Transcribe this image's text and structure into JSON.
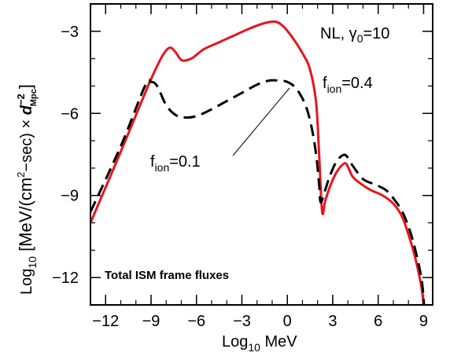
{
  "chart_data": {
    "type": "line",
    "xlabel": {
      "prefix": "Log",
      "sub": "10",
      "rest": " MeV"
    },
    "ylabel": {
      "p1": "Log",
      "p1sub": "10",
      "p2": " [MeV/(cm",
      "p2sup": "2",
      "p3": "−sec) × ",
      "p3var": "d",
      "p3sup": "−2",
      "p3sub": "Mpc",
      "p4": "]"
    },
    "xlim": [
      -13,
      9.6
    ],
    "ylim": [
      -13,
      -2
    ],
    "xticks_major": [
      -12,
      -9,
      -6,
      -3,
      0,
      3,
      6,
      9
    ],
    "yticks_major": [
      -3,
      -6,
      -9,
      -12
    ],
    "tick_labels_x": [
      "−12",
      "−9",
      "−6",
      "−3",
      "0",
      "3",
      "6",
      "9"
    ],
    "tick_labels_y": [
      "−3",
      "−6",
      "−9",
      "−12"
    ],
    "series": [
      {
        "name": "f_ion=0.4",
        "style": "solid",
        "color": "#e8141c",
        "x": [
          -13,
          -11,
          -9.2,
          -8.4,
          -8,
          -7.7,
          -7.4,
          -7,
          -6.6,
          -6.2,
          -5.5,
          -4.5,
          -3.5,
          -2.5,
          -1.5,
          -0.8,
          -0.3,
          0.3,
          1,
          1.5,
          1.9,
          2.1,
          2.3,
          2.5,
          2.8,
          3.2,
          3.6,
          3.9,
          4.3,
          4.8,
          5.5,
          6.3,
          7,
          7.6,
          8.1,
          8.5,
          8.9,
          9.1,
          9.3
        ],
        "y": [
          -10,
          -7.4,
          -5,
          -4.05,
          -3.7,
          -3.6,
          -3.75,
          -4.05,
          -4.05,
          -3.95,
          -3.65,
          -3.4,
          -3.15,
          -2.9,
          -2.7,
          -2.65,
          -2.8,
          -3.2,
          -3.8,
          -4.4,
          -5.6,
          -7.5,
          -9.6,
          -9.2,
          -8.7,
          -8.2,
          -7.9,
          -7.85,
          -8.3,
          -8.55,
          -8.8,
          -9,
          -9.3,
          -9.8,
          -10.6,
          -11.4,
          -12.5,
          -13.8,
          -15
        ]
      },
      {
        "name": "f_ion=0.1",
        "style": "dashed",
        "color": "#000000",
        "x": [
          -13,
          -11,
          -9.4,
          -9,
          -8.6,
          -8,
          -7.4,
          -6.8,
          -6,
          -5,
          -4,
          -3,
          -2,
          -1.2,
          -0.6,
          0,
          0.6,
          1.2,
          1.6,
          1.9,
          2.1,
          2.2,
          2.5,
          2.8,
          3.2,
          3.6,
          3.9,
          4.3,
          5,
          5.8,
          6.5,
          7,
          7.6,
          8.1,
          8.5,
          8.9,
          9.1,
          9.3
        ],
        "y": [
          -9.6,
          -7.2,
          -5,
          -4.85,
          -5,
          -5.7,
          -6.05,
          -6.15,
          -6.1,
          -5.85,
          -5.55,
          -5.25,
          -4.95,
          -4.8,
          -4.8,
          -4.85,
          -5.1,
          -5.7,
          -6.5,
          -7.5,
          -8.6,
          -9.25,
          -8.8,
          -8.3,
          -7.8,
          -7.55,
          -7.55,
          -7.9,
          -8.4,
          -8.6,
          -8.8,
          -9.1,
          -9.6,
          -10.3,
          -11.1,
          -12.2,
          -13.6,
          -15
        ]
      }
    ],
    "annotations": {
      "top_right": "NL, γ",
      "top_right_sub": "0",
      "top_right_rest": "=10",
      "fion_hi": {
        "prefix": "f",
        "sub": "ion",
        "rest": "=0.4"
      },
      "fion_lo": {
        "prefix": "f",
        "sub": "ion",
        "rest": "=0.1"
      },
      "bottom_left": "Total ISM frame fluxes"
    },
    "grid": false,
    "legend": "none"
  }
}
